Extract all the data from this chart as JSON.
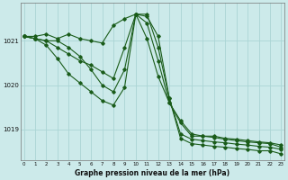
{
  "title": "Graphe pression niveau de la mer (hPa)",
  "bg_color": "#cceaea",
  "grid_color": "#aad4d4",
  "line_color": "#1a5c1a",
  "hours": [
    0,
    1,
    2,
    3,
    4,
    5,
    6,
    7,
    8,
    9,
    10,
    11,
    12,
    13,
    14,
    15,
    16,
    17,
    18,
    19,
    20,
    21,
    22,
    23
  ],
  "line1": [
    1021.1,
    1021.1,
    1021.15,
    1021.05,
    1021.15,
    1021.05,
    1021.0,
    1020.95,
    1021.35,
    1021.5,
    1021.6,
    1021.05,
    1020.2,
    1019.6,
    1019.15,
    1018.85,
    1018.85,
    1018.85,
    1018.8,
    1018.78,
    1018.75,
    1018.72,
    1018.7,
    1018.65
  ],
  "line2": [
    1021.1,
    1021.05,
    1021.0,
    1020.85,
    1020.7,
    1020.55,
    1020.45,
    1020.3,
    1020.15,
    1020.85,
    1021.6,
    1021.4,
    1020.55,
    1019.6,
    1019.2,
    1018.9,
    1018.85,
    1018.82,
    1018.78,
    1018.75,
    1018.72,
    1018.7,
    1018.68,
    1018.6
  ],
  "line3": [
    1021.1,
    1021.05,
    1021.0,
    1021.0,
    1020.85,
    1020.65,
    1020.35,
    1020.0,
    1019.85,
    1020.35,
    1021.6,
    1021.55,
    1021.1,
    1019.7,
    1018.9,
    1018.78,
    1018.75,
    1018.72,
    1018.7,
    1018.67,
    1018.65,
    1018.62,
    1018.6,
    1018.55
  ],
  "line4": [
    1021.1,
    1021.05,
    1020.9,
    1020.6,
    1020.25,
    1020.05,
    1019.85,
    1019.65,
    1019.55,
    1019.95,
    1021.6,
    1021.6,
    1020.85,
    1019.7,
    1018.8,
    1018.68,
    1018.65,
    1018.62,
    1018.6,
    1018.57,
    1018.55,
    1018.52,
    1018.52,
    1018.45
  ],
  "ylim": [
    1018.3,
    1021.85
  ],
  "yticks": [
    1019,
    1020,
    1021
  ],
  "xlim": [
    -0.3,
    23.3
  ],
  "xticks": [
    0,
    1,
    2,
    3,
    4,
    5,
    6,
    7,
    8,
    9,
    10,
    11,
    12,
    13,
    14,
    15,
    16,
    17,
    18,
    19,
    20,
    21,
    22,
    23
  ]
}
